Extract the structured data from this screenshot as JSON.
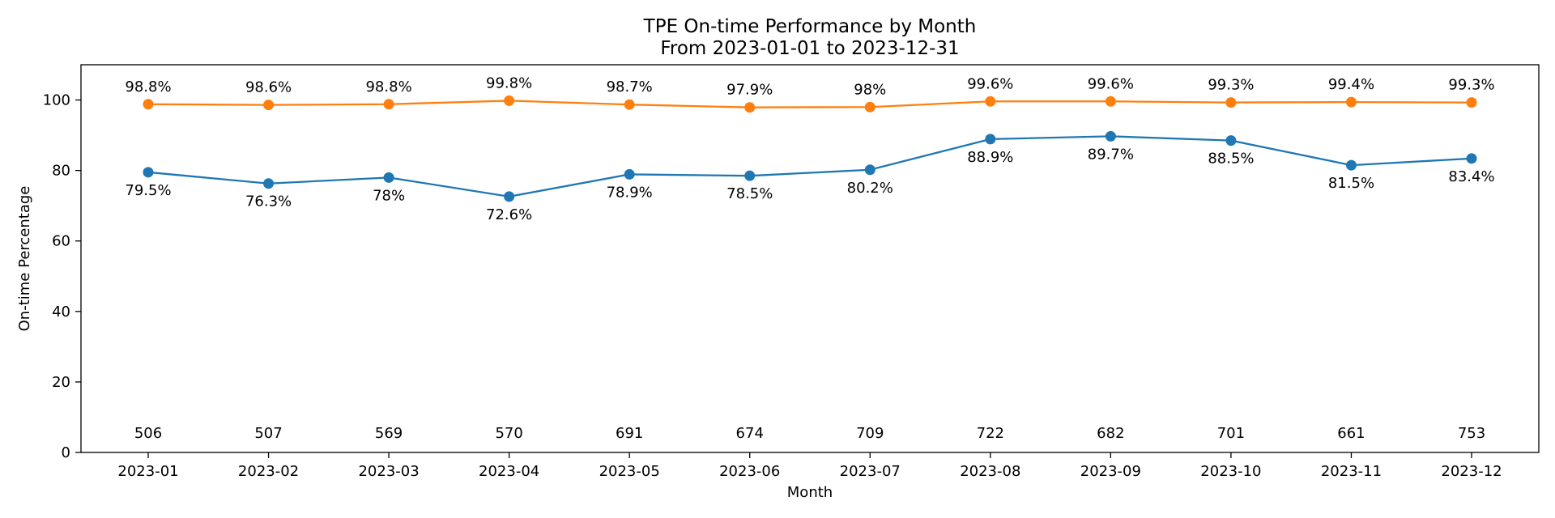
{
  "chart_data": {
    "type": "line",
    "title": "TPE On-time Performance by Month",
    "subtitle": "From 2023-01-01 to 2023-12-31",
    "xlabel": "Month",
    "ylabel": "On-time Percentage",
    "ylim": [
      0,
      110
    ],
    "yticks": [
      "0",
      "20",
      "40",
      "60",
      "80",
      "100"
    ],
    "grid": false,
    "legend": "none",
    "categories": [
      "2023-01",
      "2023-02",
      "2023-03",
      "2023-04",
      "2023-05",
      "2023-06",
      "2023-07",
      "2023-08",
      "2023-09",
      "2023-10",
      "2023-11",
      "2023-12"
    ],
    "series": [
      {
        "color": "#1f77b4",
        "values": [
          79.5,
          76.3,
          78,
          72.6,
          78.9,
          78.5,
          80.2,
          88.9,
          89.7,
          88.5,
          81.5,
          83.4
        ],
        "labels": [
          "79.5%",
          "76.3%",
          "78%",
          "72.6%",
          "78.9%",
          "78.5%",
          "80.2%",
          "88.9%",
          "89.7%",
          "88.5%",
          "81.5%",
          "83.4%"
        ],
        "label_position": "below"
      },
      {
        "color": "#ff7f0e",
        "values": [
          98.8,
          98.6,
          98.8,
          99.8,
          98.7,
          97.9,
          98,
          99.6,
          99.6,
          99.3,
          99.4,
          99.3
        ],
        "labels": [
          "98.8%",
          "98.6%",
          "98.8%",
          "99.8%",
          "98.7%",
          "97.9%",
          "98%",
          "99.6%",
          "99.6%",
          "99.3%",
          "99.4%",
          "99.3%"
        ],
        "label_position": "above"
      }
    ],
    "counts": [
      "506",
      "507",
      "569",
      "570",
      "691",
      "674",
      "709",
      "722",
      "682",
      "701",
      "661",
      "753"
    ]
  }
}
